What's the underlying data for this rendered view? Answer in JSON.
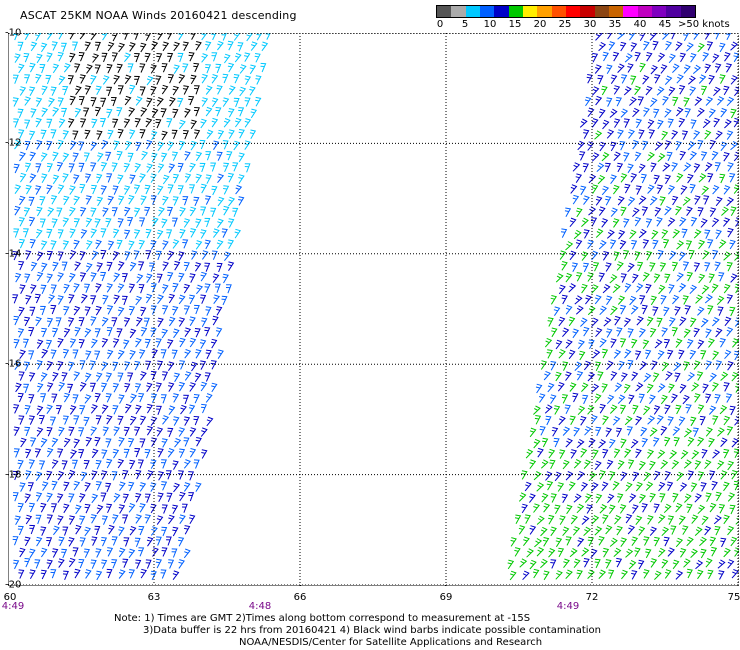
{
  "title": "ASCAT 25KM NOAA Winds 20160421 descending",
  "scale": {
    "colors": [
      "#555555",
      "#aaaaaa",
      "#00c8ff",
      "#0060ff",
      "#0000c8",
      "#00c800",
      "#ffee00",
      "#ffa000",
      "#ff5000",
      "#ff0000",
      "#c80000",
      "#8b4513",
      "#c86400",
      "#ff00ff",
      "#c000c0",
      "#8000c0",
      "#5000a0",
      "#300070"
    ],
    "labels": [
      "0",
      "5",
      "10",
      "15",
      "20",
      "25",
      "30",
      "35",
      "40",
      "45",
      ">50 knots"
    ],
    "unit": "knots"
  },
  "map": {
    "lat_range": [
      -20,
      -10
    ],
    "lon_range": [
      60,
      75
    ],
    "lat_ticks": [
      "-10",
      "-12",
      "-14",
      "-16",
      "-18",
      "-20"
    ],
    "lon_ticks": [
      "60",
      "63",
      "66",
      "69",
      "72",
      "75"
    ],
    "grid": true,
    "swath_times": [
      "4:49",
      "4:48",
      "4:49"
    ]
  },
  "notes": {
    "line1": "Note: 1) Times are GMT 2)Times along bottom correspond to measurement at -15S",
    "line2": "3)Data buffer is 22 hrs from 20160421 4) Black wind barbs indicate possible contamination",
    "line3": "NOAA/NESDIS/Center for Satellite Applications and Research"
  }
}
